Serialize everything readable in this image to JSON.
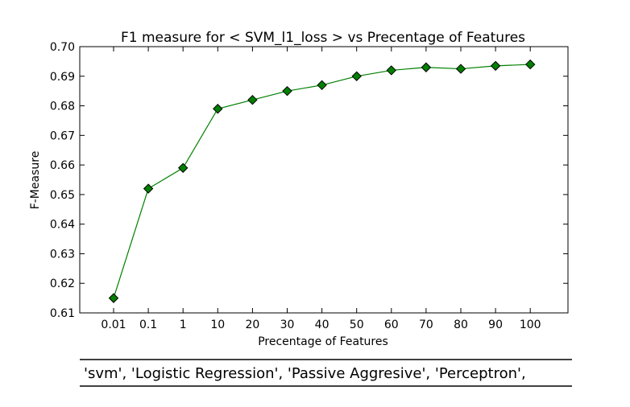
{
  "chart_data": {
    "type": "line",
    "title": "F1 measure for < SVM_l1_loss > vs Precentage of Features",
    "xlabel": "Precentage of Features",
    "ylabel": "F-Measure",
    "categories": [
      "0.01",
      "0.1",
      "1",
      "10",
      "20",
      "30",
      "40",
      "50",
      "60",
      "70",
      "80",
      "90",
      "100"
    ],
    "series": [
      {
        "values": [
          0.615,
          0.652,
          0.659,
          0.679,
          0.682,
          0.685,
          0.687,
          0.69,
          0.692,
          0.693,
          0.6925,
          0.6935,
          0.694
        ],
        "color": "#008000",
        "marker": "diamond"
      }
    ],
    "ylim": [
      0.61,
      0.7
    ],
    "yticks": [
      "0.61",
      "0.62",
      "0.63",
      "0.64",
      "0.65",
      "0.66",
      "0.67",
      "0.68",
      "0.69",
      "0.70"
    ],
    "grid": false
  },
  "footer": {
    "text": "'svm', 'Logistic Regression', 'Passive Aggresive', 'Perceptron',"
  },
  "colors": {
    "line": "#008000",
    "marker_fill": "#008000",
    "marker_stroke": "#000000"
  }
}
